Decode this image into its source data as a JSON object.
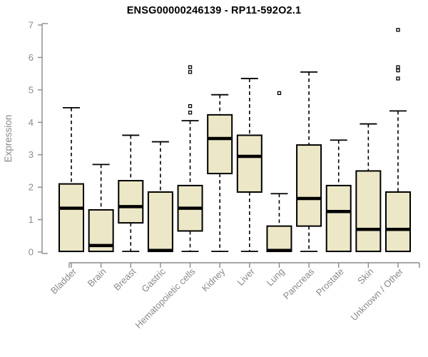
{
  "page": {
    "background": "#FFFFFF"
  },
  "colors": {
    "box_fill": "#ECE7C6",
    "box_stroke": "#000000",
    "median": "#000000",
    "whisker": "#000000",
    "outlier_stroke": "#000000",
    "outlier_fill": "#FFFFFF",
    "axis": "#8A8A8A",
    "tick_label": "#8A8A8A",
    "title": "#000000"
  },
  "chart_data": {
    "type": "boxplot",
    "title": "ENSG00000246139 - RP11-592O2.1",
    "ylabel": "Expression",
    "xlabel": "",
    "ylim": [
      0,
      7
    ],
    "yticks": [
      0,
      1,
      2,
      3,
      4,
      5,
      6,
      7
    ],
    "grid": false,
    "legend": null,
    "categories": [
      "Bladder",
      "Brain",
      "Breast",
      "Gastric",
      "Hematopoietic cells",
      "Kidney",
      "Liver",
      "Lung",
      "Pancreas",
      "Prostate",
      "Skin",
      "Unknown / Other"
    ],
    "series": [
      {
        "name": "Bladder",
        "whisker_low": 0.02,
        "q1": 0.02,
        "median": 1.35,
        "q3": 2.1,
        "whisker_high": 4.45,
        "outliers": []
      },
      {
        "name": "Brain",
        "whisker_low": 0.02,
        "q1": 0.02,
        "median": 0.2,
        "q3": 1.3,
        "whisker_high": 2.7,
        "outliers": []
      },
      {
        "name": "Breast",
        "whisker_low": 0.02,
        "q1": 0.9,
        "median": 1.4,
        "q3": 2.2,
        "whisker_high": 3.6,
        "outliers": []
      },
      {
        "name": "Gastric",
        "whisker_low": 0.02,
        "q1": 0.02,
        "median": 0.05,
        "q3": 1.85,
        "whisker_high": 3.4,
        "outliers": []
      },
      {
        "name": "Hematopoietic cells",
        "whisker_low": 0.02,
        "q1": 0.65,
        "median": 1.35,
        "q3": 2.05,
        "whisker_high": 4.05,
        "outliers": [
          4.3,
          4.5,
          5.55,
          5.7
        ]
      },
      {
        "name": "Kidney",
        "whisker_low": 0.02,
        "q1": 2.42,
        "median": 3.5,
        "q3": 4.23,
        "whisker_high": 4.85,
        "outliers": []
      },
      {
        "name": "Liver",
        "whisker_low": 0.02,
        "q1": 1.85,
        "median": 2.95,
        "q3": 3.6,
        "whisker_high": 5.35,
        "outliers": []
      },
      {
        "name": "Lung",
        "whisker_low": 0.02,
        "q1": 0.02,
        "median": 0.05,
        "q3": 0.8,
        "whisker_high": 1.8,
        "outliers": [
          4.9
        ]
      },
      {
        "name": "Pancreas",
        "whisker_low": 0.02,
        "q1": 0.8,
        "median": 1.65,
        "q3": 3.3,
        "whisker_high": 5.55,
        "outliers": []
      },
      {
        "name": "Prostate",
        "whisker_low": 0.02,
        "q1": 0.02,
        "median": 1.25,
        "q3": 2.05,
        "whisker_high": 3.45,
        "outliers": []
      },
      {
        "name": "Skin",
        "whisker_low": 0.02,
        "q1": 0.02,
        "median": 0.7,
        "q3": 2.5,
        "whisker_high": 3.95,
        "outliers": []
      },
      {
        "name": "Unknown / Other",
        "whisker_low": 0.02,
        "q1": 0.02,
        "median": 0.7,
        "q3": 1.85,
        "whisker_high": 4.35,
        "outliers": [
          5.35,
          5.6,
          5.7,
          6.85
        ]
      }
    ]
  }
}
